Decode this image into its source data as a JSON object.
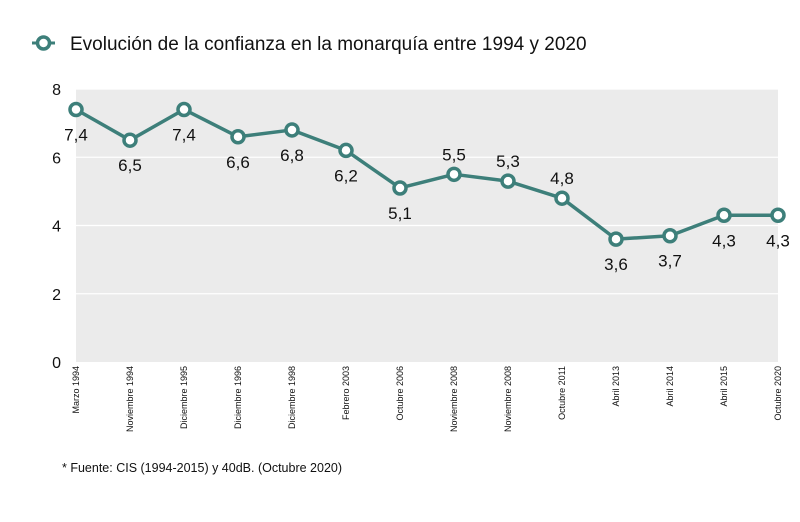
{
  "colors": {
    "series": "#3d7f7a",
    "plot_background": "#ebebeb",
    "gridline": "#ffffff",
    "text": "#111111"
  },
  "legend": {
    "label": "Evolución de la confianza en la monarquía entre 1994 y 2020",
    "marker_icon": "hollow-circle-line-marker"
  },
  "footnote": "* Fuente: CIS (1994-2015) y 40dB. (Octubre 2020)",
  "chart_data": {
    "type": "line",
    "title": "",
    "xlabel": "",
    "ylabel": "",
    "categories": [
      "Marzo 1994",
      "Noviembre 1994",
      "Diciembre 1995",
      "Diciembre 1996",
      "Diciembre 1998",
      "Febrero 2003",
      "Octubre 2006",
      "Noviembre 2008",
      "Noviembre 2008",
      "Octubre 2011",
      "Abril 2013",
      "Abril 2014",
      "Abril 2015",
      "Octubre 2020"
    ],
    "series": [
      {
        "name": "Evolución de la confianza en la monarquía entre 1994 y 2020",
        "values": [
          7.4,
          6.5,
          7.4,
          6.6,
          6.8,
          6.2,
          5.1,
          5.5,
          5.3,
          4.8,
          3.6,
          3.7,
          4.3,
          4.3
        ],
        "data_labels": [
          "7,4",
          "6,5",
          "7,4",
          "6,6",
          "6,8",
          "6,2",
          "5,1",
          "5,5",
          "5,3",
          "4,8",
          "3,6",
          "3,7",
          "4,3",
          "4,3"
        ],
        "label_position": [
          "below",
          "below",
          "below",
          "below",
          "below",
          "below",
          "below",
          "above",
          "above",
          "above",
          "below",
          "below",
          "below",
          "below"
        ]
      }
    ],
    "ylim": [
      0,
      8
    ],
    "yticks": [
      0,
      2,
      4,
      6,
      8
    ],
    "ytick_labels": [
      "0",
      "2",
      "4",
      "6",
      "8"
    ],
    "grid": true,
    "legend_position": "top-left"
  }
}
